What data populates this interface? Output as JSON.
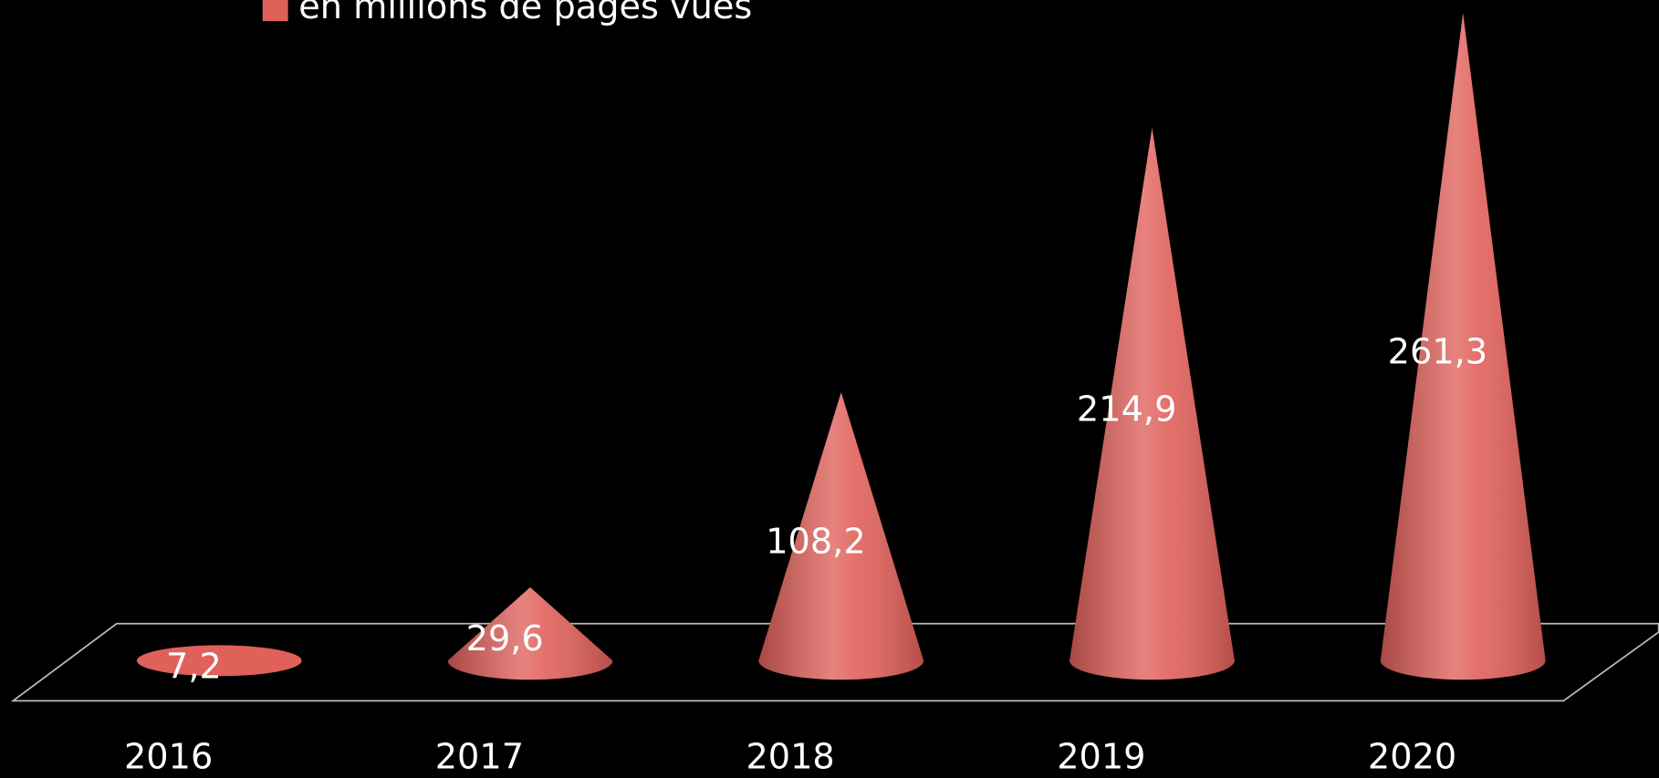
{
  "chart_data": {
    "type": "cone3d",
    "legend": "en millions de pages vues",
    "categories": [
      "2016",
      "2017",
      "2018",
      "2019",
      "2020"
    ],
    "series": [
      {
        "name": "en millions de pages vues",
        "color": "#e0605a",
        "values": [
          7.2,
          29.6,
          108.2,
          214.9,
          261.3
        ],
        "value_labels": [
          "7,2",
          "29,6",
          "108,2",
          "214,9",
          "261,3"
        ]
      }
    ]
  }
}
